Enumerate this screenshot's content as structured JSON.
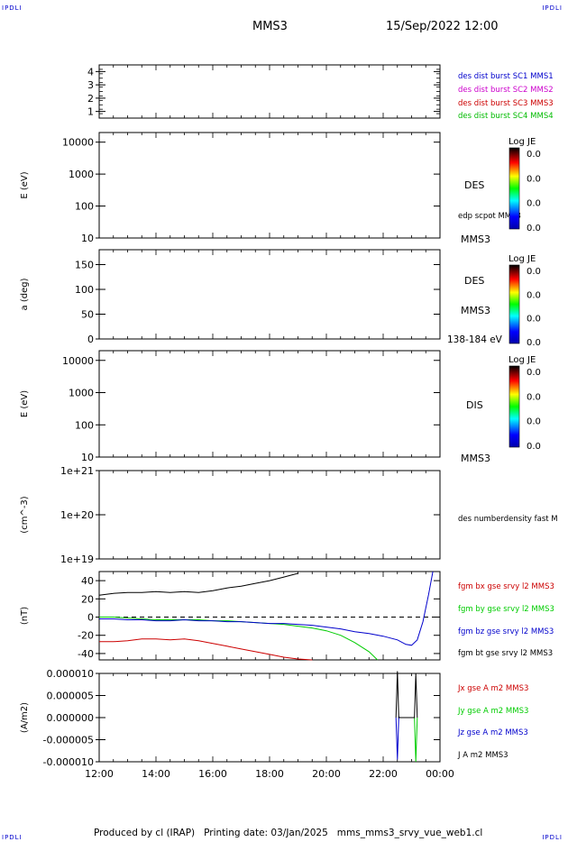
{
  "header": {
    "corner_left": "IPDLI",
    "corner_right": "IPDLI",
    "mission": "MMS3",
    "datetime": "15/Sep/2022 12:00"
  },
  "footer": {
    "text": "Produced by cl (IRAP)   Printing date: 03/Jan/2025   mms_mms3_srvy_vue_web1.cl",
    "corner_left": "IPDLI",
    "corner_right": "IPDLI"
  },
  "colors": {
    "sc1": "#0000cc",
    "sc2": "#cc00cc",
    "sc3": "#cc0000",
    "sc4": "#00bb00",
    "bx": "#cc0000",
    "by": "#00cc00",
    "bz": "#0000cc",
    "bt": "#000000",
    "jx": "#cc0000",
    "jy": "#00cc00",
    "jz": "#0000cc",
    "j": "#000000"
  },
  "time_axis": {
    "ticks": [
      "12:00",
      "14:00",
      "16:00",
      "18:00",
      "20:00",
      "22:00",
      "00:00"
    ],
    "range_hours": [
      12,
      24
    ]
  },
  "chart_data": [
    {
      "type": "line",
      "id": "sc-burst-flags",
      "ylim": [
        0.5,
        4.5
      ],
      "yticks": [
        "1",
        "2",
        "3",
        "4"
      ],
      "legend": [
        "des dist burst SC1 MMS1",
        "des dist burst SC2 MMS2",
        "des dist burst SC3 MMS3",
        "des dist burst SC4 MMS4"
      ],
      "series": []
    },
    {
      "type": "heatmap",
      "id": "des-energy-spectrogram",
      "ylabel": "E (eV)",
      "yscale": "log",
      "ylim": [
        10,
        20000
      ],
      "yticks": [
        "10",
        "100",
        "1000",
        "10000"
      ],
      "label": "DES",
      "overlay_label": "edp scpot MMS3",
      "instrument": "MMS3",
      "colorbar": {
        "title": "Log JE",
        "ticks": [
          "0.0",
          "0.0",
          "0.0",
          "0.0"
        ]
      }
    },
    {
      "type": "heatmap",
      "id": "des-pitch-angle",
      "ylabel": "a (deg)",
      "ylim": [
        0,
        180
      ],
      "yticks": [
        "0",
        "50",
        "100",
        "150"
      ],
      "label": "DES",
      "instrument": "MMS3",
      "energy_band": "138-184 eV",
      "colorbar": {
        "title": "Log JE",
        "ticks": [
          "0.0",
          "0.0",
          "0.0",
          "0.0"
        ]
      }
    },
    {
      "type": "heatmap",
      "id": "dis-energy-spectrogram",
      "ylabel": "E (eV)",
      "yscale": "log",
      "ylim": [
        10,
        20000
      ],
      "yticks": [
        "10",
        "100",
        "1000",
        "10000"
      ],
      "label": "DIS",
      "instrument": "MMS3",
      "colorbar": {
        "title": "Log JE",
        "ticks": [
          "0.0",
          "0.0",
          "0.0",
          "0.0"
        ]
      }
    },
    {
      "type": "line",
      "id": "density",
      "ylabel": "(cm^-3)",
      "yscale": "log",
      "ylim": [
        1e+19,
        1e+21
      ],
      "yticks": [
        "1e+19",
        "1e+20",
        "1e+21"
      ],
      "legend": [
        "des numberdensity fast M"
      ],
      "series": []
    },
    {
      "type": "line",
      "id": "fgm-magnetic-field",
      "ylabel": "(nT)",
      "ylim": [
        -47,
        50
      ],
      "yticks": [
        "-40",
        "-20",
        "0",
        "20",
        "40"
      ],
      "zero_line": true,
      "legend": [
        "fgm bx gse srvy l2 MMS3",
        "fgm by gse srvy l2 MMS3",
        "fgm bz gse srvy l2 MMS3",
        "fgm bt gse srvy l2 MMS3"
      ],
      "series": [
        {
          "key": "bt",
          "x": [
            12.0,
            12.5,
            13.0,
            13.5,
            14.0,
            14.5,
            15.0,
            15.5,
            16.0,
            16.5,
            17.0,
            17.5,
            18.0,
            18.5,
            19.0
          ],
          "y": [
            24,
            26,
            27,
            27,
            28,
            27,
            28,
            27,
            29,
            32,
            34,
            37,
            40,
            44,
            48
          ]
        },
        {
          "key": "bx",
          "x": [
            12.0,
            12.5,
            13.0,
            13.5,
            14.0,
            14.5,
            15.0,
            15.5,
            16.0,
            16.5,
            17.0,
            17.5,
            18.0,
            18.5,
            19.0,
            19.5
          ],
          "y": [
            -27,
            -27,
            -26,
            -24,
            -24,
            -25,
            -24,
            -26,
            -29,
            -32,
            -35,
            -38,
            -41,
            -44,
            -46,
            -47
          ]
        },
        {
          "key": "by",
          "x": [
            12.0,
            12.5,
            13.0,
            13.5,
            14.0,
            14.5,
            15.0,
            15.5,
            16.0,
            16.5,
            17.0,
            17.5,
            18.0,
            18.5,
            19.0,
            19.5,
            20.0,
            20.5,
            21.0,
            21.5,
            21.8
          ],
          "y": [
            0,
            0,
            -1,
            -2,
            -3,
            -3,
            -3,
            -3,
            -4,
            -4,
            -5,
            -6,
            -7,
            -8,
            -10,
            -12,
            -15,
            -20,
            -28,
            -38,
            -47
          ]
        },
        {
          "key": "bz",
          "x": [
            12.0,
            12.5,
            13.0,
            13.5,
            14.0,
            14.5,
            15.0,
            15.5,
            16.0,
            16.5,
            17.0,
            17.5,
            18.0,
            18.5,
            19.0,
            19.5,
            20.0,
            20.5,
            21.0,
            21.5,
            22.0,
            22.5,
            22.8,
            23.0,
            23.2,
            23.4,
            23.6,
            23.75
          ],
          "y": [
            -2,
            -2,
            -3,
            -3,
            -4,
            -4,
            -3,
            -4,
            -4,
            -5,
            -5,
            -6,
            -7,
            -7,
            -8,
            -9,
            -11,
            -13,
            -16,
            -18,
            -21,
            -25,
            -30,
            -31,
            -25,
            -5,
            25,
            50
          ]
        }
      ]
    },
    {
      "type": "line",
      "id": "current-density",
      "ylabel": "(A/m2)",
      "ylim": [
        -1e-05,
        1e-05
      ],
      "yticks": [
        "-0.000010",
        "-0.000005",
        "0.000000",
        "0.000005",
        "0.000010"
      ],
      "legend": [
        "Jx gse A m2 MMS3",
        "Jy gse A m2 MMS3",
        "Jz gse A m2 MMS3",
        "J A m2 MMS3"
      ],
      "series": [
        {
          "key": "jz",
          "x": [
            22.45,
            22.5,
            22.55,
            22.6
          ],
          "y": [
            0,
            -9.5e-06,
            1e-07,
            0
          ]
        },
        {
          "key": "jy",
          "x": [
            23.1,
            23.15,
            23.2
          ],
          "y": [
            0,
            -1e-05,
            0
          ]
        },
        {
          "key": "j",
          "x": [
            22.45,
            22.5,
            22.55,
            23.1,
            23.15,
            23.2
          ],
          "y": [
            0,
            1.05e-05,
            0,
            0,
            1e-05,
            0
          ]
        }
      ]
    }
  ]
}
